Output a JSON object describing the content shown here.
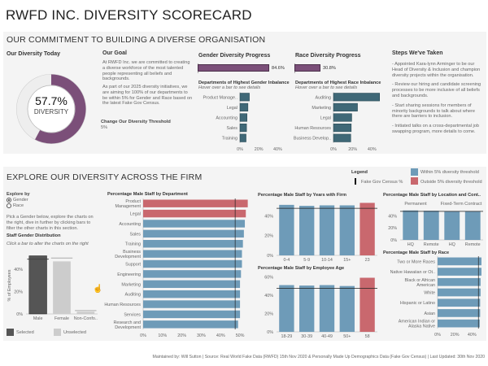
{
  "title": "RWFD INC. DIVERSITY SCORECARD",
  "colors": {
    "within": "#6e9bb8",
    "outside": "#c9686e",
    "purple": "#7b4f79",
    "teal": "#3f6877",
    "selected": "#555555",
    "unselected": "#cccccc"
  },
  "commitment": {
    "heading": "OUR COMMITMENT TO BUILDING A DIVERSE ORGANISATION",
    "today": {
      "title": "Our Diversity Today",
      "value": "57.7%",
      "fraction": 0.577,
      "label": "DIVERSITY"
    },
    "goal": {
      "title": "Our Goal",
      "p1": "At RWFD Inc. we are committed to creating a diverse workforce of the most talented people representing all beliefs and backgrounds.",
      "p2": "As part of our 2025 diversity initiatives, we are aiming for 100% of our departments to be within 5% for Gender and Race based on the latest Fake Gov Census.",
      "threshold_label": "Change Our Diversity Threshold",
      "threshold_value": "5%"
    },
    "gender": {
      "title": "Gender Diversity Progress",
      "value_label": "84.6%",
      "value": 84.6,
      "sub": "Departments of Highest Gender Inbalance",
      "hint": "Hover over a bar to see details"
    },
    "race": {
      "title": "Race Diversity Progress",
      "value_label": "30.8%",
      "value": 30.8,
      "sub": "Departments of Highest Race Inbalance",
      "hint": "Hover over a bar to see details"
    },
    "steps": {
      "title": "Steps We've Taken",
      "items": [
        "- Appointed Kara-lynn Arminger to be our Head of Diversity & Inclusion and champion diversity projects within the organisation.",
        "- Review our hiring and candidate screening processes to be more inclusive of all beliefs and backgrounds.",
        "- Start sharing sessions for members of minority backgrounds to talk about where there are barriers to inclusion.",
        "- Initiated talks on a cross-departmental job swapping program, more details to come."
      ]
    }
  },
  "explore": {
    "heading": "EXPLORE OUR DIVERSITY ACROSS THE FIRM",
    "explore_by": "Explore by",
    "options": [
      {
        "label": "Gender",
        "selected": true
      },
      {
        "label": "Race",
        "selected": false
      }
    ],
    "instructions": "Pick a Gender below, explore the charts on the right, dive in further by clicking bars to filter the other charts in this section.",
    "dist_title": "Staff Gender Distribution",
    "dist_hint": "Click a bar to alter the charts on the right",
    "selected_label": "Selected",
    "unselected_label": "Unselected",
    "legend": {
      "title": "Legend",
      "census": "Fake Gov Census %",
      "within": "Within 5% diversity threshold",
      "outside": "Outside 5% diversity threshold"
    }
  },
  "chart_data": [
    {
      "id": "gender-imbalance",
      "type": "bar",
      "orientation": "horizontal",
      "title": "Departments of Highest Gender Inbalance",
      "categories": [
        "Product Manage..",
        "Legal",
        "Accounting",
        "Sales",
        "Training"
      ],
      "values": [
        10,
        8.5,
        7.5,
        7,
        6.5
      ],
      "xlim": [
        0,
        50
      ],
      "ticks": [
        0,
        20,
        40
      ],
      "tick_labels": [
        "0%",
        "20%",
        "40%"
      ],
      "color": "teal"
    },
    {
      "id": "race-imbalance",
      "type": "bar",
      "orientation": "horizontal",
      "title": "Departments of Highest Race Inbalance",
      "categories": [
        "Auditing",
        "Marketing",
        "Legal",
        "Human Resources",
        "Business Develop.."
      ],
      "values": [
        48,
        25,
        19,
        18.5,
        18
      ],
      "xlim": [
        0,
        55
      ],
      "ticks": [
        0,
        20,
        40
      ],
      "tick_labels": [
        "0%",
        "20%",
        "40%"
      ],
      "color": "teal"
    },
    {
      "id": "gender-dist",
      "type": "bar",
      "orientation": "vertical",
      "title": "Staff Gender Distribution",
      "ylabel": "% of Employees",
      "categories": [
        "Male",
        "Female",
        "Non-Confo.."
      ],
      "values": [
        52,
        47,
        2
      ],
      "census": [
        49,
        50,
        3
      ],
      "ylim": [
        0,
        56
      ],
      "ticks": [
        0,
        20,
        40
      ],
      "tick_labels": [
        "0%",
        "20%",
        "40%"
      ],
      "status": [
        "selected",
        "unselected",
        "unselected"
      ]
    },
    {
      "id": "dept",
      "type": "bar",
      "orientation": "horizontal",
      "title": "Percentage Male Staff by Department",
      "categories": [
        "Product\nManagement",
        "Legal",
        "Accounting",
        "Sales",
        "Training",
        "Business\nDevelopment",
        "Support",
        "Engineering",
        "Marketing",
        "Auditing",
        "Human Resources",
        "Services",
        "Research and\nDevelopment"
      ],
      "values": [
        54,
        53,
        52.5,
        52,
        51.5,
        51,
        51,
        50.5,
        50,
        50,
        50,
        50,
        49
      ],
      "census": 47.5,
      "xlim": [
        0,
        55
      ],
      "ticks": [
        0,
        10,
        20,
        30,
        40,
        50
      ],
      "tick_labels": [
        "0%",
        "10%",
        "20%",
        "30%",
        "40%",
        "50%"
      ],
      "status": [
        "outside",
        "outside",
        "within",
        "within",
        "within",
        "within",
        "within",
        "within",
        "within",
        "within",
        "within",
        "within",
        "within"
      ]
    },
    {
      "id": "years",
      "type": "bar",
      "orientation": "vertical",
      "title": "Percentage Male Staff by Years with Firm",
      "categories": [
        "0-4",
        "5-9",
        "10-14",
        "15+",
        "23"
      ],
      "values": [
        51,
        50,
        50.5,
        50.5,
        53
      ],
      "census": 47.5,
      "ylim": [
        0,
        55
      ],
      "ticks": [
        0,
        20,
        40
      ],
      "tick_labels": [
        "0%",
        "20%",
        "40%"
      ],
      "status": [
        "within",
        "within",
        "within",
        "within",
        "outside"
      ]
    },
    {
      "id": "age",
      "type": "bar",
      "orientation": "vertical",
      "title": "Percentage Male Staff by Employee Age",
      "categories": [
        "18-29",
        "30-39",
        "40-49",
        "50+",
        "58"
      ],
      "values": [
        51,
        50.5,
        51,
        50,
        59
      ],
      "census": 47.5,
      "ylim": [
        0,
        63
      ],
      "ticks": [
        0,
        20,
        40,
        60
      ],
      "tick_labels": [
        "0%",
        "20%",
        "40%",
        "60%"
      ],
      "status": [
        "within",
        "within",
        "within",
        "within",
        "outside"
      ]
    },
    {
      "id": "location",
      "type": "bar",
      "orientation": "vertical",
      "title": "Percentage Male Staff by Location and Cont..",
      "groups": [
        "Permanent",
        "Fixed-Term Contract"
      ],
      "categories": [
        "HQ",
        "Remote",
        "HQ",
        "Remote"
      ],
      "values": [
        49,
        48.5,
        48,
        48
      ],
      "census": 47.5,
      "ylim": [
        0,
        50
      ],
      "ticks": [
        0,
        20,
        40
      ],
      "tick_labels": [
        "0%",
        "20%",
        "40%"
      ],
      "status": [
        "within",
        "within",
        "within",
        "within"
      ]
    },
    {
      "id": "race",
      "type": "bar",
      "orientation": "horizontal",
      "title": "Percentage Male Staff by Race",
      "categories": [
        "Two or More Races",
        "Native Hawaiian or Ot..",
        "Black or African\nAmerican",
        "White",
        "Hispanic or Latino",
        "Asian",
        "American Indian or\nAlaska Native"
      ],
      "values": [
        51,
        51,
        50,
        50,
        49.5,
        49.5,
        49
      ],
      "census": 47.5,
      "xlim": [
        0,
        52
      ],
      "ticks": [
        0,
        20,
        40
      ],
      "tick_labels": [
        "0%",
        "20%",
        "40%"
      ],
      "status": [
        "within",
        "within",
        "within",
        "within",
        "within",
        "within",
        "within"
      ]
    }
  ],
  "footer": "Maintained by: Will Sutton | Source: Real World Fake Data (RWFD) 15th Nov 2020 & Personally Made Up Demographics Data (Fake Gov Census) | Last Updated: 30th Nov 2020"
}
